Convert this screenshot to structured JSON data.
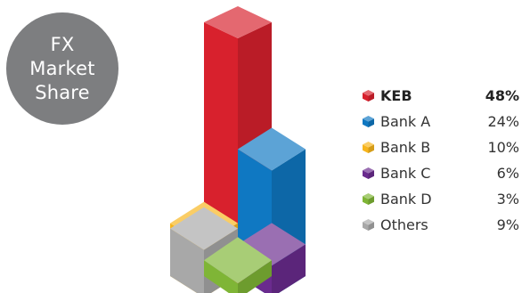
{
  "chart_data": {
    "type": "bar",
    "title": "FX Market Share",
    "title_lines": [
      "FX",
      "Market",
      "Share"
    ],
    "legend_position": "right",
    "series": [
      {
        "name": "KEB",
        "value": 48,
        "value_label": "48%",
        "color": "#d8212d",
        "highlight": true
      },
      {
        "name": "Bank A",
        "value": 24,
        "value_label": "24%",
        "color": "#0f78c2",
        "highlight": false
      },
      {
        "name": "Bank B",
        "value": 10,
        "value_label": "10%",
        "color": "#f7b51c",
        "highlight": false
      },
      {
        "name": "Bank C",
        "value": 6,
        "value_label": "6%",
        "color": "#6a2b8e",
        "highlight": false
      },
      {
        "name": "Bank D",
        "value": 3,
        "value_label": "3%",
        "color": "#7fb536",
        "highlight": false
      },
      {
        "name": "Others",
        "value": 9,
        "value_label": "9%",
        "color": "#a8a8a8",
        "highlight": false
      }
    ]
  }
}
